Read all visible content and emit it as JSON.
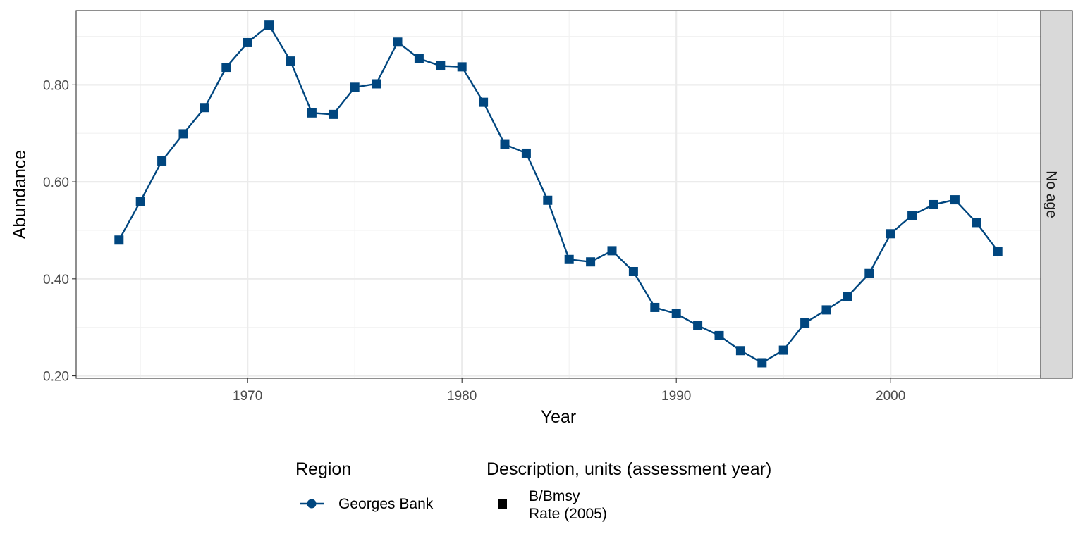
{
  "chart_data": {
    "type": "line",
    "xlabel": "Year",
    "ylabel": "Abundance",
    "xlim": [
      1962,
      2007
    ],
    "ylim": [
      0.195,
      0.953
    ],
    "x_ticks": [
      1970,
      1980,
      1990,
      2000
    ],
    "x_tick_labels": [
      "1970",
      "1980",
      "1990",
      "2000"
    ],
    "y_ticks": [
      0.2,
      0.4,
      0.6,
      0.8
    ],
    "y_tick_labels": [
      "0.20",
      "0.40",
      "0.60",
      "0.80"
    ],
    "grid": true,
    "facet_label": "No age",
    "legend_position": "bottom",
    "series": [
      {
        "name": "Georges Bank",
        "color": "#00467f",
        "marker": "square",
        "x": [
          1964,
          1965,
          1966,
          1967,
          1968,
          1969,
          1970,
          1971,
          1972,
          1973,
          1974,
          1975,
          1976,
          1977,
          1978,
          1979,
          1980,
          1981,
          1982,
          1983,
          1984,
          1985,
          1986,
          1987,
          1988,
          1989,
          1990,
          1991,
          1992,
          1993,
          1994,
          1995,
          1996,
          1997,
          1998,
          1999,
          2000,
          2001,
          2002,
          2003,
          2004,
          2005
        ],
        "y": [
          0.48,
          0.56,
          0.643,
          0.699,
          0.753,
          0.836,
          0.887,
          0.923,
          0.849,
          0.742,
          0.739,
          0.795,
          0.802,
          0.888,
          0.854,
          0.839,
          0.837,
          0.764,
          0.677,
          0.659,
          0.562,
          0.44,
          0.435,
          0.458,
          0.415,
          0.341,
          0.328,
          0.304,
          0.283,
          0.252,
          0.227,
          0.253,
          0.309,
          0.336,
          0.364,
          0.411,
          0.493,
          0.531,
          0.553,
          0.563,
          0.516,
          0.457
        ]
      }
    ],
    "legend": {
      "region_title": "Region",
      "region_items": [
        "Georges Bank"
      ],
      "description_title": "Description, units (assessment year)",
      "description_line1": "B/Bmsy",
      "description_line2": "Rate (2005)"
    }
  },
  "colors": {
    "series": "#00467f",
    "panel_border": "#333333",
    "grid_major": "#ebebeb",
    "grid_minor": "#f2f2f2",
    "strip_fill": "#d9d9d9"
  }
}
